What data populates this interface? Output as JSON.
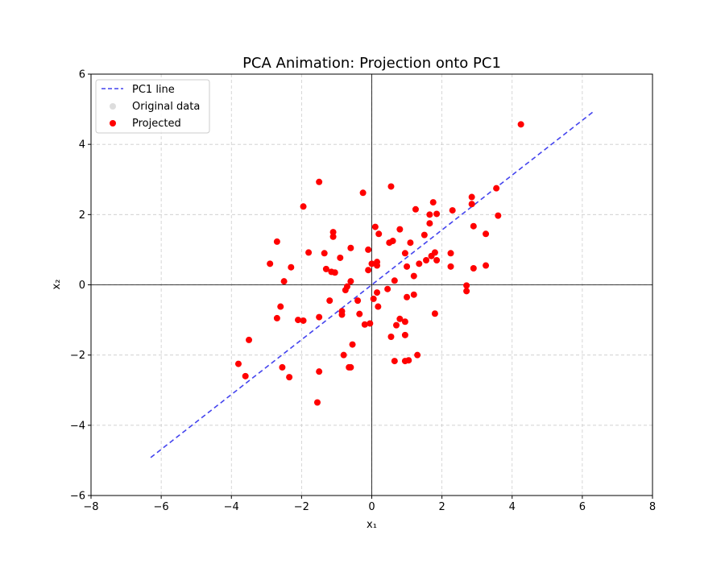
{
  "chart_data": {
    "type": "scatter",
    "title": "PCA Animation: Projection onto PC1",
    "xlabel": "x₁",
    "ylabel": "x₂",
    "xlim": [
      -8,
      8
    ],
    "ylim": [
      -6,
      6
    ],
    "xticks": [
      -8,
      -6,
      -4,
      -2,
      0,
      2,
      4,
      6,
      8
    ],
    "yticks": [
      -6,
      -4,
      -2,
      0,
      2,
      4,
      6
    ],
    "xtick_labels": [
      "−8",
      "−6",
      "−4",
      "−2",
      "0",
      "2",
      "4",
      "6",
      "8"
    ],
    "ytick_labels": [
      "−6",
      "−4",
      "−2",
      "0",
      "2",
      "4",
      "6"
    ],
    "grid": true,
    "legend_position": "upper-left",
    "pc1_line": {
      "name": "PC1 line",
      "color": "#4444ee",
      "style": "dashed",
      "x": [
        -6.3,
        6.3
      ],
      "y": [
        -4.92,
        4.92
      ]
    },
    "series": [
      {
        "name": "Original data",
        "color": "#dddddd",
        "points": []
      },
      {
        "name": "Projected",
        "color": "#ff0000",
        "points": [
          [
            4.25,
            4.57
          ],
          [
            -1.5,
            2.93
          ],
          [
            0.55,
            2.8
          ],
          [
            -0.25,
            2.62
          ],
          [
            -1.95,
            2.23
          ],
          [
            1.75,
            2.35
          ],
          [
            2.85,
            2.5
          ],
          [
            1.25,
            2.15
          ],
          [
            1.65,
            2.0
          ],
          [
            1.85,
            2.02
          ],
          [
            2.3,
            2.12
          ],
          [
            2.85,
            2.3
          ],
          [
            3.55,
            2.75
          ],
          [
            3.6,
            1.97
          ],
          [
            1.65,
            1.75
          ],
          [
            2.9,
            1.67
          ],
          [
            0.1,
            1.65
          ],
          [
            0.8,
            1.58
          ],
          [
            0.2,
            1.45
          ],
          [
            1.5,
            1.42
          ],
          [
            3.25,
            1.45
          ],
          [
            -1.1,
            1.5
          ],
          [
            -1.1,
            1.37
          ],
          [
            0.5,
            1.2
          ],
          [
            0.6,
            1.25
          ],
          [
            1.1,
            1.2
          ],
          [
            -2.7,
            1.23
          ],
          [
            -0.6,
            1.05
          ],
          [
            -0.1,
            1.0
          ],
          [
            -1.8,
            0.92
          ],
          [
            -1.35,
            0.9
          ],
          [
            0.95,
            0.9
          ],
          [
            1.8,
            0.92
          ],
          [
            1.7,
            0.82
          ],
          [
            2.25,
            0.9
          ],
          [
            -0.9,
            0.77
          ],
          [
            1.55,
            0.7
          ],
          [
            1.85,
            0.7
          ],
          [
            -2.9,
            0.6
          ],
          [
            0.0,
            0.6
          ],
          [
            0.15,
            0.55
          ],
          [
            0.15,
            0.65
          ],
          [
            1.35,
            0.6
          ],
          [
            1.0,
            0.52
          ],
          [
            2.25,
            0.52
          ],
          [
            3.25,
            0.55
          ],
          [
            2.9,
            0.47
          ],
          [
            -2.3,
            0.5
          ],
          [
            -1.3,
            0.45
          ],
          [
            -1.15,
            0.37
          ],
          [
            -1.05,
            0.35
          ],
          [
            -0.1,
            0.42
          ],
          [
            1.2,
            0.25
          ],
          [
            -2.5,
            0.1
          ],
          [
            -0.6,
            0.1
          ],
          [
            0.65,
            0.12
          ],
          [
            -0.7,
            -0.05
          ],
          [
            2.7,
            -0.02
          ],
          [
            -0.75,
            -0.15
          ],
          [
            0.15,
            -0.22
          ],
          [
            0.45,
            -0.12
          ],
          [
            2.7,
            -0.18
          ],
          [
            1.2,
            -0.28
          ],
          [
            1.0,
            -0.35
          ],
          [
            -1.2,
            -0.45
          ],
          [
            -0.4,
            -0.45
          ],
          [
            0.05,
            -0.4
          ],
          [
            0.18,
            -0.62
          ],
          [
            -2.6,
            -0.62
          ],
          [
            -0.85,
            -0.75
          ],
          [
            -0.85,
            -0.85
          ],
          [
            -0.35,
            -0.83
          ],
          [
            1.8,
            -0.82
          ],
          [
            -2.7,
            -0.95
          ],
          [
            -1.5,
            -0.92
          ],
          [
            -2.1,
            -1.0
          ],
          [
            -1.95,
            -1.02
          ],
          [
            0.8,
            -0.97
          ],
          [
            0.95,
            -1.05
          ],
          [
            -0.2,
            -1.13
          ],
          [
            -0.05,
            -1.1
          ],
          [
            0.7,
            -1.15
          ],
          [
            0.55,
            -1.48
          ],
          [
            0.95,
            -1.43
          ],
          [
            -3.5,
            -1.57
          ],
          [
            -0.55,
            -1.7
          ],
          [
            -0.8,
            -2.0
          ],
          [
            1.3,
            -2.0
          ],
          [
            0.65,
            -2.17
          ],
          [
            0.95,
            -2.17
          ],
          [
            1.05,
            -2.15
          ],
          [
            -3.8,
            -2.25
          ],
          [
            -2.55,
            -2.35
          ],
          [
            -0.65,
            -2.35
          ],
          [
            -0.6,
            -2.35
          ],
          [
            -1.5,
            -2.47
          ],
          [
            -3.6,
            -2.6
          ],
          [
            -2.35,
            -2.63
          ],
          [
            -1.55,
            -3.35
          ]
        ]
      }
    ]
  }
}
